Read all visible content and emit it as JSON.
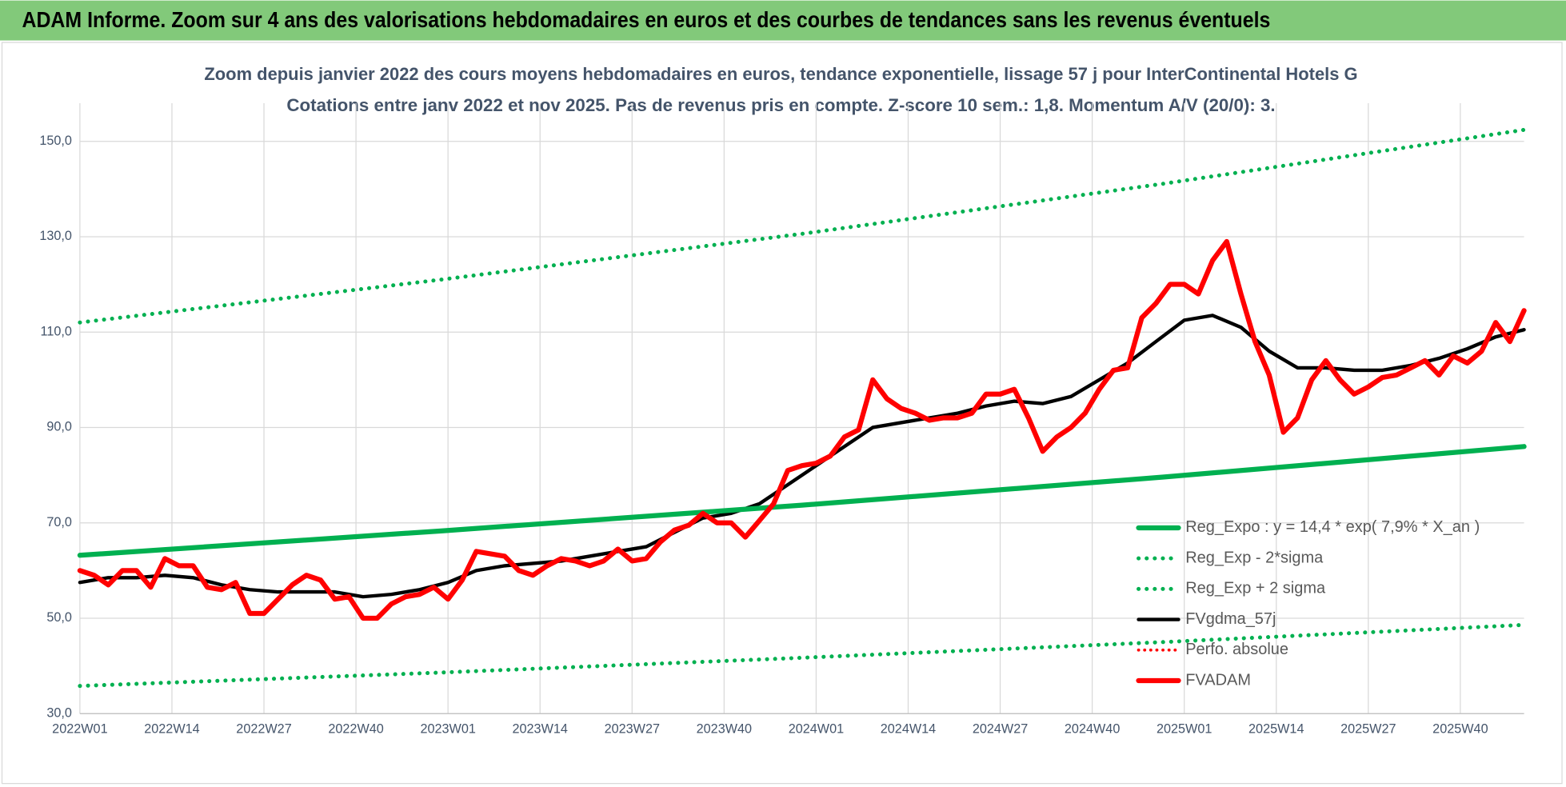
{
  "header": {
    "title": "ADAM Informe. Zoom sur 4 ans des valorisations hebdomadaires en euros et des courbes de tendances sans les revenus éventuels"
  },
  "chart_data": {
    "type": "line",
    "title": "Zoom depuis janvier 2022 des cours moyens hebdomadaires en euros, tendance exponentielle, lissage 57 j pour InterContinental Hotels G",
    "subtitle": "Cotations entre janv 2022 et nov 2025. Pas de revenus pris en compte. Z-score 10 sem.: 1,8. Momentum A/V (20/0): 3.",
    "xlim": [
      0,
      204
    ],
    "ylim": [
      30,
      158
    ],
    "xticks": [
      {
        "value": 0,
        "label": "2022W01"
      },
      {
        "value": 13,
        "label": "2022W14"
      },
      {
        "value": 26,
        "label": "2022W27"
      },
      {
        "value": 39,
        "label": "2022W40"
      },
      {
        "value": 52,
        "label": "2023W01"
      },
      {
        "value": 65,
        "label": "2023W14"
      },
      {
        "value": 78,
        "label": "2023W27"
      },
      {
        "value": 91,
        "label": "2023W40"
      },
      {
        "value": 104,
        "label": "2024W01"
      },
      {
        "value": 117,
        "label": "2024W14"
      },
      {
        "value": 130,
        "label": "2024W27"
      },
      {
        "value": 143,
        "label": "2024W40"
      },
      {
        "value": 156,
        "label": "2025W01"
      },
      {
        "value": 169,
        "label": "2025W14"
      },
      {
        "value": 182,
        "label": "2025W27"
      },
      {
        "value": 195,
        "label": "2025W40"
      }
    ],
    "yticks": [
      {
        "value": 30,
        "label": "30,0"
      },
      {
        "value": 50,
        "label": "50,0"
      },
      {
        "value": 70,
        "label": "70,0"
      },
      {
        "value": 90,
        "label": "90,0"
      },
      {
        "value": 110,
        "label": "110,0"
      },
      {
        "value": 130,
        "label": "130,0"
      },
      {
        "value": 150,
        "label": "150,0"
      }
    ],
    "grid": true,
    "series": [
      {
        "name": "Reg_Expo : y = 14,4 * exp( 7,9% *  X_an )",
        "color": "#00b050",
        "style": "solid",
        "width": 5,
        "x": [
          0,
          51,
          102,
          153,
          204
        ],
        "values": [
          63.2,
          68.3,
          73.7,
          79.6,
          86.0
        ]
      },
      {
        "name": "Reg_Exp - 2*sigma",
        "color": "#00b050",
        "style": "dotted",
        "width": 4,
        "x": [
          0,
          51,
          102,
          153,
          204
        ],
        "values": [
          35.8,
          38.6,
          41.7,
          45.0,
          48.6
        ]
      },
      {
        "name": "Reg_Exp + 2 sigma",
        "color": "#00b050",
        "style": "dotted",
        "width": 4,
        "x": [
          0,
          51,
          102,
          153,
          204
        ],
        "values": [
          112,
          121,
          130.6,
          141.1,
          152.4
        ]
      },
      {
        "name": "FVgdma_57j",
        "color": "#000000",
        "style": "solid",
        "width": 3.5,
        "x": [
          0,
          4,
          8,
          12,
          16,
          20,
          24,
          28,
          32,
          36,
          40,
          44,
          48,
          52,
          56,
          60,
          64,
          68,
          72,
          76,
          80,
          84,
          88,
          92,
          96,
          100,
          104,
          108,
          112,
          116,
          120,
          124,
          128,
          132,
          136,
          140,
          144,
          148,
          152,
          156,
          160,
          164,
          168,
          172,
          176,
          180,
          184,
          188,
          192,
          196,
          200,
          204
        ],
        "values": [
          57.5,
          58.5,
          58.5,
          59,
          58.5,
          57,
          56,
          55.5,
          55.5,
          55.5,
          54.5,
          55,
          56,
          57.5,
          60,
          61,
          61.5,
          62,
          63,
          64,
          65,
          68,
          71,
          72,
          74,
          78,
          82,
          86,
          90,
          91,
          92,
          93,
          94.5,
          95.5,
          95,
          96.5,
          100,
          103.5,
          108,
          112.5,
          113.5,
          111,
          106,
          102.5,
          102.5,
          102,
          102,
          103,
          104.5,
          106.5,
          109,
          110.5
        ]
      },
      {
        "name": "Perfo. absolue",
        "color": "#ff0000",
        "style": "dotted",
        "width": 3,
        "x": [],
        "values": []
      },
      {
        "name": "FVADAM",
        "color": "#ff0000",
        "style": "solid",
        "width": 5,
        "x": [
          0,
          2,
          4,
          6,
          8,
          10,
          12,
          14,
          16,
          18,
          20,
          22,
          24,
          26,
          28,
          30,
          32,
          34,
          36,
          38,
          40,
          42,
          44,
          46,
          48,
          50,
          52,
          54,
          56,
          58,
          60,
          62,
          64,
          66,
          68,
          70,
          72,
          74,
          76,
          78,
          80,
          82,
          84,
          86,
          88,
          90,
          92,
          94,
          96,
          98,
          100,
          102,
          104,
          106,
          108,
          110,
          112,
          114,
          116,
          118,
          120,
          122,
          124,
          126,
          128,
          130,
          132,
          134,
          136,
          138,
          140,
          142,
          144,
          146,
          148,
          150,
          152,
          154,
          156,
          158,
          160,
          162,
          164,
          166,
          168,
          170,
          172,
          174,
          176,
          178,
          180,
          182,
          184,
          186,
          188,
          190,
          192,
          194,
          196,
          198,
          200,
          202,
          204
        ],
        "values": [
          60,
          59,
          57,
          60,
          60,
          56.5,
          62.5,
          61,
          61,
          56.5,
          56,
          57.5,
          51,
          51,
          54,
          57,
          59,
          58,
          54,
          54.5,
          50,
          50,
          53,
          54.5,
          55,
          56.5,
          54,
          58,
          64,
          63.5,
          63,
          60,
          59,
          61,
          62.5,
          62,
          61,
          62,
          64.5,
          62,
          62.5,
          66,
          68.5,
          69.5,
          72,
          70,
          70,
          67,
          70.5,
          74,
          81,
          82,
          82.5,
          84,
          88,
          89.5,
          100,
          96,
          94,
          93,
          91.5,
          92,
          92,
          93,
          97,
          97,
          98,
          92,
          85,
          88,
          90,
          93,
          98,
          102,
          102.5,
          113,
          116,
          120,
          120,
          118,
          125,
          129,
          118,
          108,
          101,
          89,
          92,
          100,
          104,
          100,
          97,
          98.5,
          100.5,
          101,
          102.5,
          104,
          101,
          105,
          103.5,
          106,
          112,
          108,
          114.5
        ]
      }
    ]
  }
}
